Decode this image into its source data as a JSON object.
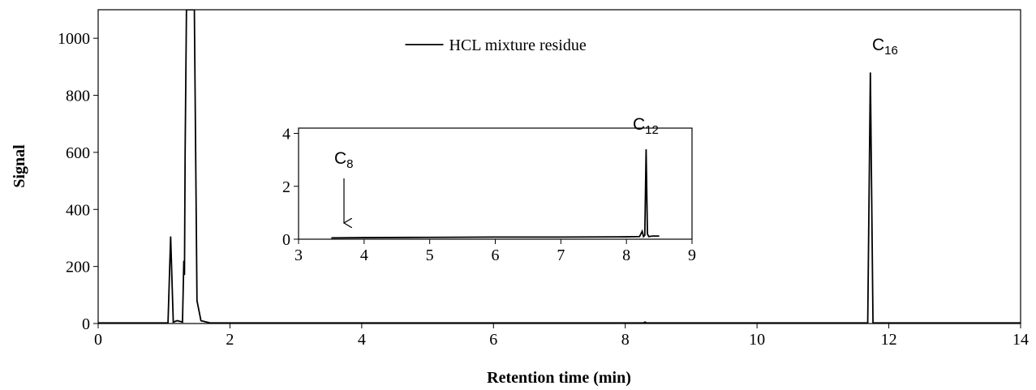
{
  "chart_data": [
    {
      "type": "line",
      "x_label": "Retention time (min)",
      "y_label": "Signal",
      "legend_position": "top-center",
      "xlim": [
        0,
        14
      ],
      "ylim": [
        0,
        1100
      ],
      "xticks": [
        0,
        2,
        4,
        6,
        8,
        10,
        12,
        14
      ],
      "yticks": [
        0,
        200,
        400,
        600,
        800,
        1000
      ],
      "series": [
        {
          "name": "HCL mixture residue",
          "color": "#000000",
          "x": [
            0,
            1.06,
            1.1,
            1.14,
            1.2,
            1.28,
            1.3,
            1.31,
            1.32,
            1.34,
            1.46,
            1.5,
            1.56,
            1.7,
            8.28,
            8.3,
            8.32,
            11.68,
            11.72,
            11.76,
            14
          ],
          "values": [
            2,
            2,
            305,
            5,
            10,
            5,
            220,
            170,
            600,
            1100,
            1100,
            80,
            10,
            2,
            2,
            5,
            2,
            2,
            880,
            2,
            2
          ]
        }
      ],
      "annotations": [
        {
          "text": "C",
          "subscript": "16"
        }
      ]
    },
    {
      "type": "line",
      "xlim": [
        3,
        9
      ],
      "ylim": [
        0,
        4.2
      ],
      "xticks": [
        3,
        4,
        5,
        6,
        7,
        8,
        9
      ],
      "yticks": [
        0,
        2,
        4
      ],
      "series": [
        {
          "color": "#000000",
          "x": [
            3.5,
            4,
            5,
            6,
            7,
            8,
            8.2,
            8.24,
            8.26,
            8.28,
            8.3,
            8.32,
            8.34,
            8.4,
            8.5
          ],
          "values": [
            0.05,
            0.06,
            0.07,
            0.08,
            0.08,
            0.09,
            0.1,
            0.3,
            0.1,
            0.15,
            3.4,
            0.2,
            0.1,
            0.12,
            0.12
          ]
        }
      ],
      "annotations": [
        {
          "text": "C",
          "subscript": "8"
        },
        {
          "text": "C",
          "subscript": "12"
        }
      ]
    }
  ]
}
